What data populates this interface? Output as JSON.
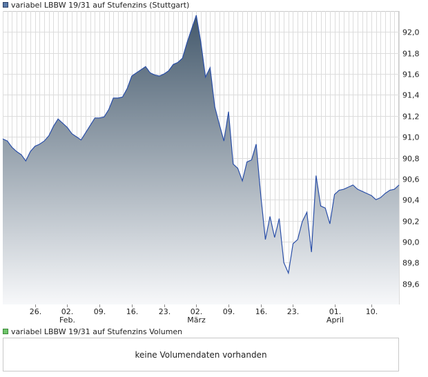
{
  "legend": {
    "main_label": "variabel LBBW 19/31 auf Stufenzins (Stuttgart)",
    "volume_label": "variabel LBBW 19/31 auf Stufenzins Volumen"
  },
  "volume_panel": {
    "message": "keine Volumendaten vorhanden"
  },
  "colors": {
    "line": "#2a4fa8",
    "fill_top": "#44596c",
    "fill_bottom": "#f7f8fa",
    "grid": "#dcdcdc"
  },
  "chart_data": {
    "type": "area",
    "title": "variabel LBBW 19/31 auf Stufenzins (Stuttgart)",
    "ylim": [
      89.4,
      92.2
    ],
    "y_ticks": [
      "92,0",
      "91,8",
      "91,6",
      "91,4",
      "91,2",
      "91,0",
      "90,8",
      "90,6",
      "90,4",
      "90,2",
      "90,0",
      "89,8",
      "89,6"
    ],
    "y_tick_values": [
      92.0,
      91.8,
      91.6,
      91.4,
      91.2,
      91.0,
      90.8,
      90.6,
      90.4,
      90.2,
      90.0,
      89.8,
      89.6
    ],
    "x_ticks": [
      {
        "label": "26.",
        "sub": "",
        "index": 7
      },
      {
        "label": "02.",
        "sub": "Feb.",
        "index": 14
      },
      {
        "label": "09.",
        "sub": "",
        "index": 21
      },
      {
        "label": "16.",
        "sub": "",
        "index": 28
      },
      {
        "label": "23.",
        "sub": "",
        "index": 35
      },
      {
        "label": "02.",
        "sub": "März",
        "index": 42
      },
      {
        "label": "09.",
        "sub": "",
        "index": 49
      },
      {
        "label": "16.",
        "sub": "",
        "index": 56
      },
      {
        "label": "23.",
        "sub": "",
        "index": 63
      },
      {
        "label": "01.",
        "sub": "April",
        "index": 72
      },
      {
        "label": "10.",
        "sub": "",
        "index": 80
      }
    ],
    "x_count": 87,
    "series": [
      {
        "name": "variabel LBBW 19/31 auf Stufenzins (Stuttgart)",
        "values": [
          90.98,
          90.96,
          90.9,
          90.86,
          90.83,
          90.77,
          90.86,
          90.91,
          90.93,
          90.96,
          91.01,
          91.1,
          91.17,
          91.13,
          91.09,
          91.03,
          91.0,
          90.97,
          91.04,
          91.11,
          91.18,
          91.18,
          91.19,
          91.26,
          91.37,
          91.37,
          91.38,
          91.46,
          91.58,
          91.61,
          91.64,
          91.67,
          91.61,
          91.59,
          91.58,
          91.6,
          91.63,
          91.69,
          91.71,
          91.75,
          91.9,
          92.03,
          92.16,
          91.9,
          91.57,
          91.66,
          91.29,
          91.12,
          90.96,
          91.24,
          90.74,
          90.7,
          90.58,
          90.76,
          90.78,
          90.93,
          90.44,
          90.02,
          90.24,
          90.04,
          90.22,
          89.8,
          89.7,
          89.98,
          90.02,
          90.19,
          90.28,
          89.9,
          90.63,
          90.34,
          90.32,
          90.17,
          90.45,
          90.49,
          90.5,
          90.52,
          90.54,
          90.5,
          90.48,
          90.46,
          90.44,
          90.4,
          90.42,
          90.46,
          90.49,
          90.5,
          90.54
        ]
      }
    ],
    "grid": true
  }
}
